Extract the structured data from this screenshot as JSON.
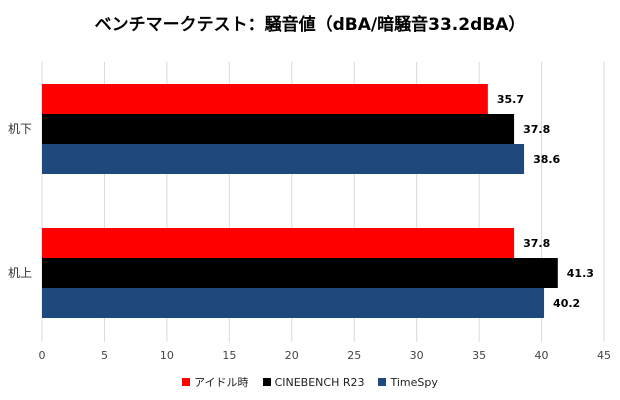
{
  "chart_data": {
    "type": "bar",
    "orientation": "horizontal",
    "title": "ベンチマークテスト：騒音値（dBA/暗騒音33.2dBA）",
    "categories": [
      "机下",
      "机上"
    ],
    "series": [
      {
        "name": "アイドル時",
        "color": "#ff0000",
        "values": [
          35.7,
          37.8
        ]
      },
      {
        "name": "CINEBENCH R23",
        "color": "#000000",
        "values": [
          37.8,
          41.3
        ]
      },
      {
        "name": "TimeSpy",
        "color": "#1f497d",
        "values": [
          38.6,
          40.2
        ]
      }
    ],
    "xlim": [
      0,
      45
    ],
    "xticks": [
      "0",
      "5",
      "10",
      "15",
      "20",
      "25",
      "30",
      "35",
      "40",
      "45"
    ],
    "grid": true,
    "legend_position": "bottom",
    "data_labels": true
  }
}
